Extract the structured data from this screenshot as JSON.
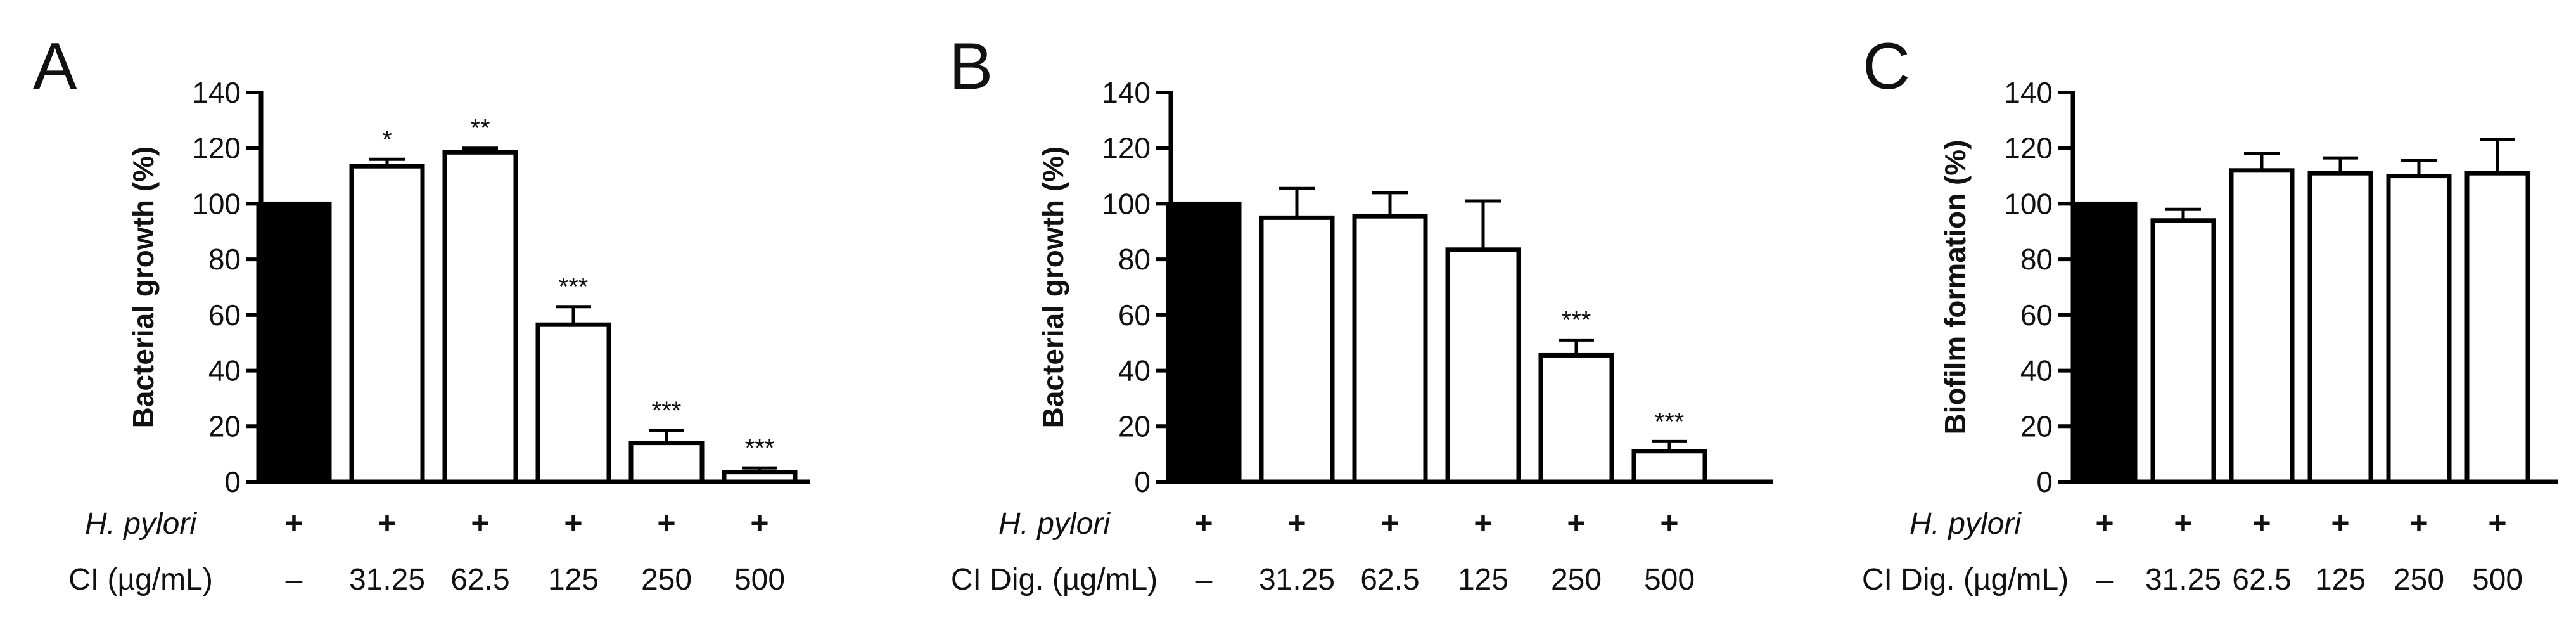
{
  "chart_data": [
    {
      "type": "bar",
      "panel_label": "A",
      "ylabel": "Bacterial growth (%)",
      "ylim": [
        0,
        140
      ],
      "yticks": [
        0,
        20,
        40,
        60,
        80,
        100,
        120,
        140
      ],
      "categories": [
        "–",
        "31.25",
        "62.5",
        "125",
        "250",
        "500"
      ],
      "values": [
        100,
        113.5,
        118.5,
        56.5,
        14,
        3.5
      ],
      "errors": [
        0,
        2.5,
        1.5,
        6.5,
        4.5,
        1.5
      ],
      "significance": [
        "",
        "*",
        "**",
        "***",
        "***",
        "***"
      ],
      "fills": [
        "#000000",
        "#ffffff",
        "#ffffff",
        "#ffffff",
        "#ffffff",
        "#ffffff"
      ],
      "conditions": [
        {
          "label": "H. pylori",
          "italic": true,
          "values": [
            "+",
            "+",
            "+",
            "+",
            "+",
            "+"
          ]
        },
        {
          "label": "CI (µg/mL)",
          "italic": false,
          "values": [
            "–",
            "31.25",
            "62.5",
            "125",
            "250",
            "500"
          ]
        }
      ]
    },
    {
      "type": "bar",
      "panel_label": "B",
      "ylabel": "Bacterial growth (%)",
      "ylim": [
        0,
        140
      ],
      "yticks": [
        0,
        20,
        40,
        60,
        80,
        100,
        120,
        140
      ],
      "categories": [
        "–",
        "31.25",
        "62.5",
        "125",
        "250",
        "500"
      ],
      "values": [
        100,
        95,
        95.5,
        83.5,
        45.5,
        11
      ],
      "errors": [
        0,
        10.5,
        8.5,
        17.5,
        5.5,
        3.5
      ],
      "significance": [
        "",
        "",
        "",
        "",
        "***",
        "***"
      ],
      "fills": [
        "#000000",
        "#ffffff",
        "#ffffff",
        "#ffffff",
        "#ffffff",
        "#ffffff"
      ],
      "conditions": [
        {
          "label": "H. pylori",
          "italic": true,
          "values": [
            "+",
            "+",
            "+",
            "+",
            "+",
            "+"
          ]
        },
        {
          "label": "CI Dig. (µg/mL)",
          "italic": false,
          "values": [
            "–",
            "31.25",
            "62.5",
            "125",
            "250",
            "500"
          ]
        }
      ]
    },
    {
      "type": "bar",
      "panel_label": "C",
      "ylabel": "Biofilm formation (%)",
      "ylim": [
        0,
        140
      ],
      "yticks": [
        0,
        20,
        40,
        60,
        80,
        100,
        120,
        140
      ],
      "categories": [
        "–",
        "31.25",
        "62.5",
        "125",
        "250",
        "500"
      ],
      "values": [
        100,
        94,
        112,
        111,
        110,
        111
      ],
      "errors": [
        0,
        4,
        6,
        5.5,
        5.5,
        12
      ],
      "significance": [
        "",
        "",
        "",
        "",
        "",
        ""
      ],
      "fills": [
        "#000000",
        "#ffffff",
        "#ffffff",
        "#ffffff",
        "#ffffff",
        "#ffffff"
      ],
      "conditions": [
        {
          "label": "H. pylori",
          "italic": true,
          "values": [
            "+",
            "+",
            "+",
            "+",
            "+",
            "+"
          ]
        },
        {
          "label": "CI Dig. (µg/mL)",
          "italic": false,
          "values": [
            "–",
            "31.25",
            "62.5",
            "125",
            "250",
            "500"
          ]
        }
      ]
    }
  ]
}
